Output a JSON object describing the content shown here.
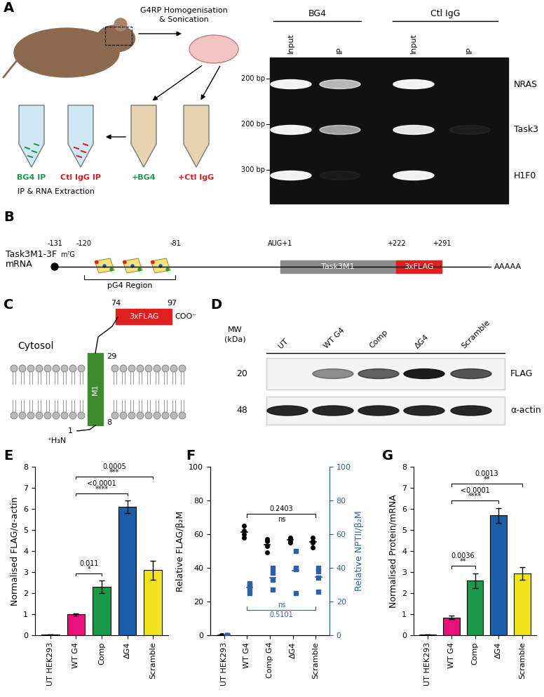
{
  "panel_labels": [
    "A",
    "B",
    "C",
    "D",
    "E",
    "F",
    "G"
  ],
  "panel_a": {
    "schematic": {
      "step_lines": [
        "G4RP Homogenisation",
        "& Sonication"
      ],
      "treatments": [
        "+BG4",
        "+Ctl IgG"
      ],
      "ip_tubes": [
        "BG4 IP",
        "Ctl IgG IP"
      ],
      "extraction": "IP & RNA Extraction"
    },
    "gel": {
      "groups": [
        "BG4",
        "Ctl IgG"
      ],
      "lanes": [
        "Input",
        "IP",
        "Input",
        "IP"
      ],
      "rows": [
        {
          "gene": "NRAS",
          "size": "200 bp"
        },
        {
          "gene": "Task3",
          "size": "200 bp"
        },
        {
          "gene": "H1F0",
          "size": "300 bp"
        }
      ]
    }
  },
  "panel_b": {
    "name_lines": [
      "Task3M1-3F",
      "mRNA"
    ],
    "cap": "m⁷G",
    "positions": [
      "-131",
      "-120",
      "-81",
      "AUG+1",
      "+222",
      "+291"
    ],
    "region": "pG4 Region",
    "cds": "Task3M1",
    "tag": "3xFLAG",
    "poly_a": "AAAAA"
  },
  "panel_c": {
    "compartment": "Cytosol",
    "domain": "M1",
    "tag": "3xFLAG",
    "c_terminus": "COO⁻",
    "n_terminus": "⁺H₃N",
    "residues": [
      "1",
      "8",
      "29",
      "74",
      "97"
    ]
  },
  "panel_d": {
    "mw_lines": [
      "MW",
      "(kDa)"
    ],
    "lanes": [
      "UT",
      "WT G4",
      "Comp",
      "ΔG4",
      "Scramble"
    ],
    "blots": [
      {
        "mw": "20",
        "target": "FLAG"
      },
      {
        "mw": "48",
        "target": "α-actin"
      }
    ]
  },
  "chart_data": [
    {
      "type": "bar",
      "categories": [
        "UT HEK293",
        "WT G4",
        "Comp",
        "ΔG4",
        "Scramble"
      ],
      "values": [
        0.02,
        1.0,
        2.3,
        6.1,
        3.1
      ],
      "errors": [
        0,
        0.05,
        0.3,
        0.3,
        0.45
      ],
      "colors": [
        "#000000",
        "#e5127d",
        "#1a9a48",
        "#1a5ea8",
        "#f2e41c"
      ],
      "ylabel": "Normalised FLAG/α-actin",
      "ylim": [
        0,
        8
      ],
      "yticks": [
        0,
        1,
        2,
        3,
        4,
        5,
        6,
        7,
        8
      ],
      "comparisons": [
        {
          "from": "WT G4",
          "to": "Comp",
          "p": "0.011",
          "stars": "*"
        },
        {
          "from": "WT G4",
          "to": "ΔG4",
          "p": "<0.0001",
          "stars": "****"
        },
        {
          "from": "WT G4",
          "to": "Scramble",
          "p": "0.0005",
          "stars": "***"
        }
      ]
    },
    {
      "type": "scatter",
      "categories": [
        "UT HEK293",
        "WT G4",
        "Comp G4",
        "ΔG4",
        "Scramble"
      ],
      "ylabel": "Relative FLAG/β₂M",
      "y2label": "Relative NPTII/β₂M",
      "ylim": [
        0,
        100
      ],
      "yticks": [
        0,
        20,
        40,
        60,
        80,
        100
      ],
      "y2lim": [
        0,
        100
      ],
      "y2ticks": [
        0,
        20,
        40,
        60,
        80,
        100
      ],
      "series": [
        {
          "axis": "y",
          "color": "#000000",
          "marker": "circle",
          "values": [
            [
              0,
              0,
              0,
              0
            ],
            [
              62,
              65,
              58,
              60
            ],
            [
              53,
              57,
              49,
              56
            ],
            [
              56,
              58,
              55,
              57
            ],
            [
              55,
              58,
              52,
              56
            ]
          ]
        },
        {
          "axis": "y2",
          "color": "#2e5fa3",
          "marker": "square",
          "values": [
            [
              0,
              0,
              0,
              0
            ],
            [
              25,
              30,
              28,
              31
            ],
            [
              27,
              40,
              33,
              37
            ],
            [
              25,
              39,
              40,
              50
            ],
            [
              26,
              34,
              38,
              40
            ]
          ]
        }
      ],
      "comparisons": [
        {
          "from": "WT G4",
          "to": "Scramble",
          "p": "0.2403",
          "stars": "ns",
          "axis": "y"
        },
        {
          "from": "WT G4",
          "to": "Scramble",
          "p": "0.5101",
          "stars": "ns",
          "axis": "y2"
        }
      ]
    },
    {
      "type": "bar",
      "categories": [
        "UT HEK293",
        "WT G4",
        "Comp",
        "ΔG4",
        "Scramble"
      ],
      "values": [
        0.02,
        0.85,
        2.6,
        5.7,
        2.95
      ],
      "errors": [
        0,
        0.08,
        0.35,
        0.35,
        0.3
      ],
      "colors": [
        "#000000",
        "#e5127d",
        "#1a9a48",
        "#1a5ea8",
        "#f2e41c"
      ],
      "ylabel": "Normalised Protein/mRNA",
      "ylim": [
        0,
        8
      ],
      "yticks": [
        0,
        1,
        2,
        3,
        4,
        5,
        6,
        7,
        8
      ],
      "comparisons": [
        {
          "from": "WT G4",
          "to": "Comp",
          "p": "0.0036",
          "stars": "**"
        },
        {
          "from": "WT G4",
          "to": "ΔG4",
          "p": "<0.0001",
          "stars": "****"
        },
        {
          "from": "WT G4",
          "to": "Scramble",
          "p": "0.0013",
          "stars": "**"
        }
      ]
    }
  ]
}
